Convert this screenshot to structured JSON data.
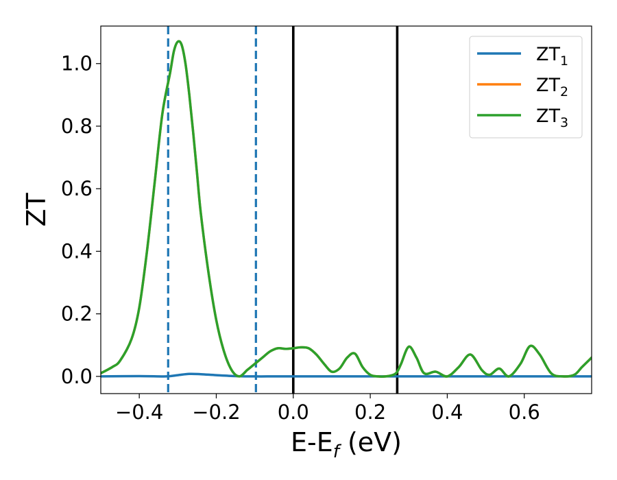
{
  "chart_data": {
    "type": "line",
    "xlabel": {
      "main": "E-E",
      "sub": "f",
      "unit": " (eV)"
    },
    "ylabel": "ZT",
    "xlim": [
      -0.5,
      0.775
    ],
    "ylim": [
      -0.055,
      1.12
    ],
    "x_ticks": [
      -0.4,
      -0.2,
      0.0,
      0.2,
      0.4,
      0.6
    ],
    "x_tick_labels": [
      "−0.4",
      "−0.2",
      "0.0",
      "0.2",
      "0.4",
      "0.6"
    ],
    "y_ticks": [
      0.0,
      0.2,
      0.4,
      0.6,
      0.8,
      1.0
    ],
    "y_tick_labels": [
      "0.0",
      "0.2",
      "0.4",
      "0.6",
      "0.8",
      "1.0"
    ],
    "grid": false,
    "legend_position": "top-right",
    "vlines": [
      {
        "x": -0.325,
        "style": "dashed",
        "color": "#1f77b4"
      },
      {
        "x": -0.097,
        "style": "dashed",
        "color": "#1f77b4"
      },
      {
        "x": 0.0,
        "style": "solid",
        "color": "#000000"
      },
      {
        "x": 0.27,
        "style": "solid",
        "color": "#000000"
      }
    ],
    "series": [
      {
        "name": "ZT",
        "sub": "1",
        "color": "#1f77b4",
        "x": [
          -0.5,
          -0.4,
          -0.33,
          -0.3,
          -0.27,
          -0.24,
          -0.2,
          -0.15,
          -0.1,
          -0.05,
          0.0,
          0.1,
          0.2,
          0.3,
          0.4,
          0.5,
          0.6,
          0.7,
          0.775
        ],
        "y": [
          0.0,
          0.001,
          0.0,
          0.004,
          0.008,
          0.007,
          0.004,
          0.001,
          0.0,
          0.0,
          0.0,
          0.0,
          0.0,
          0.0,
          0.0,
          0.0,
          0.0,
          0.0,
          0.0
        ]
      },
      {
        "name": "ZT",
        "sub": "2",
        "color": "#ff7f0e",
        "x": [
          -0.5,
          -0.47,
          -0.45,
          -0.42,
          -0.4,
          -0.38,
          -0.36,
          -0.34,
          -0.32,
          -0.31,
          -0.3,
          -0.29,
          -0.28,
          -0.27,
          -0.26,
          -0.25,
          -0.24,
          -0.22,
          -0.2,
          -0.18,
          -0.16,
          -0.14,
          -0.12,
          -0.11,
          -0.1,
          -0.08,
          -0.06,
          -0.04,
          -0.02,
          0.0,
          0.02,
          0.04,
          0.06,
          0.08,
          0.1,
          0.12,
          0.14,
          0.16,
          0.18,
          0.2,
          0.22,
          0.24,
          0.26,
          0.27,
          0.28,
          0.3,
          0.32,
          0.34,
          0.37,
          0.4,
          0.43,
          0.46,
          0.49,
          0.51,
          0.535,
          0.56,
          0.59,
          0.615,
          0.64,
          0.67,
          0.7,
          0.73,
          0.75,
          0.775
        ],
        "y": [
          0.01,
          0.03,
          0.05,
          0.12,
          0.22,
          0.4,
          0.62,
          0.84,
          0.97,
          1.04,
          1.07,
          1.06,
          1.0,
          0.9,
          0.78,
          0.65,
          0.52,
          0.33,
          0.18,
          0.08,
          0.02,
          0.0,
          0.02,
          0.03,
          0.04,
          0.06,
          0.08,
          0.09,
          0.088,
          0.09,
          0.093,
          0.09,
          0.07,
          0.04,
          0.015,
          0.025,
          0.06,
          0.073,
          0.03,
          0.005,
          0.0,
          0.0,
          0.005,
          0.015,
          0.04,
          0.095,
          0.06,
          0.01,
          0.015,
          0.0,
          0.03,
          0.07,
          0.02,
          0.005,
          0.025,
          0.0,
          0.04,
          0.097,
          0.07,
          0.01,
          0.0,
          0.005,
          0.03,
          0.06
        ]
      },
      {
        "name": "ZT",
        "sub": "3",
        "color": "#2ca02c",
        "x": [
          -0.5,
          -0.47,
          -0.45,
          -0.42,
          -0.4,
          -0.38,
          -0.36,
          -0.34,
          -0.32,
          -0.31,
          -0.3,
          -0.29,
          -0.28,
          -0.27,
          -0.26,
          -0.25,
          -0.24,
          -0.22,
          -0.2,
          -0.18,
          -0.16,
          -0.14,
          -0.12,
          -0.11,
          -0.1,
          -0.08,
          -0.06,
          -0.04,
          -0.02,
          0.0,
          0.02,
          0.04,
          0.06,
          0.08,
          0.1,
          0.12,
          0.14,
          0.16,
          0.18,
          0.2,
          0.22,
          0.24,
          0.26,
          0.27,
          0.28,
          0.3,
          0.32,
          0.34,
          0.37,
          0.4,
          0.43,
          0.46,
          0.49,
          0.51,
          0.535,
          0.56,
          0.59,
          0.615,
          0.64,
          0.67,
          0.7,
          0.73,
          0.75,
          0.775
        ],
        "y": [
          0.01,
          0.03,
          0.05,
          0.12,
          0.22,
          0.4,
          0.62,
          0.84,
          0.97,
          1.04,
          1.07,
          1.06,
          1.0,
          0.9,
          0.78,
          0.65,
          0.52,
          0.33,
          0.18,
          0.08,
          0.02,
          0.0,
          0.02,
          0.03,
          0.04,
          0.06,
          0.08,
          0.09,
          0.088,
          0.09,
          0.093,
          0.09,
          0.07,
          0.04,
          0.015,
          0.025,
          0.06,
          0.073,
          0.03,
          0.005,
          0.0,
          0.0,
          0.005,
          0.015,
          0.04,
          0.095,
          0.06,
          0.01,
          0.015,
          0.0,
          0.03,
          0.07,
          0.02,
          0.005,
          0.025,
          0.0,
          0.04,
          0.097,
          0.07,
          0.01,
          0.0,
          0.005,
          0.03,
          0.06
        ]
      }
    ]
  }
}
